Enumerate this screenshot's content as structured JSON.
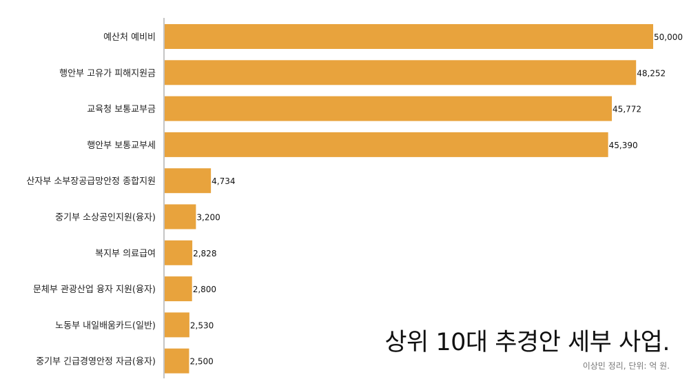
{
  "chart_data": {
    "type": "bar",
    "orientation": "horizontal",
    "title": "상위 10대 추경안 세부 사업.",
    "source_note": "이상민 정리, 단위: 억 원.",
    "categories": [
      "예산처 예비비",
      "행안부 고유가 피해지원금",
      "교육청 보통교부금",
      "행안부 보통교부세",
      "산자부 소부장공급망안정 종합지원",
      "중기부 소상공인지원(융자)",
      "복지부 의료급여",
      "문체부 관광산업 융자 지원(융자)",
      "노동부 내일배움카드(일반)",
      "중기부 긴급경영안정 자금(융자)"
    ],
    "values": [
      50000,
      48252,
      45772,
      45390,
      4734,
      3200,
      2828,
      2800,
      2530,
      2500
    ],
    "value_labels": [
      "50,000",
      "48,252",
      "45,772",
      "45,390",
      "4,734",
      "3,200",
      "2,828",
      "2,800",
      "2,530",
      "2,500"
    ],
    "xlim": [
      0,
      50000
    ],
    "grid": false,
    "legend": "none",
    "bar_color": "#E8A33D"
  }
}
